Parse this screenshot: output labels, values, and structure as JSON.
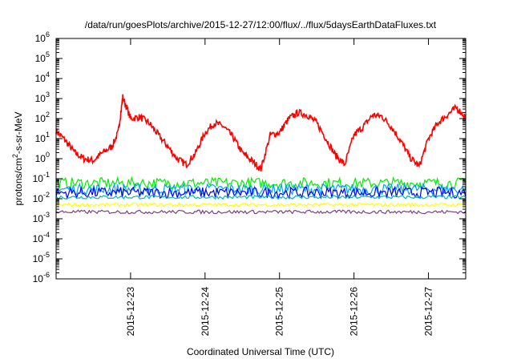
{
  "chart_data": {
    "type": "line",
    "title": "/data/run/goesPlots/archive/2015-12-27/12:00/flux/../flux/5daysEarthDataFluxes.txt",
    "xlabel": "Coordinated Universal Time (UTC)",
    "ylabel": {
      "pre": "protons/cm",
      "sup": "2",
      "post": "-s-sr-MeV"
    },
    "y_scale": "log",
    "ylim_exp": [
      -6,
      6
    ],
    "y_ticks": [
      {
        "base": "10",
        "exp": "-6"
      },
      {
        "base": "10",
        "exp": "-5"
      },
      {
        "base": "10",
        "exp": "-4"
      },
      {
        "base": "10",
        "exp": "-3"
      },
      {
        "base": "10",
        "exp": "-2"
      },
      {
        "base": "10",
        "exp": "-1"
      },
      {
        "base": "10",
        "exp": "0"
      },
      {
        "base": "10",
        "exp": "1"
      },
      {
        "base": "10",
        "exp": "2"
      },
      {
        "base": "10",
        "exp": "3"
      },
      {
        "base": "10",
        "exp": "4"
      },
      {
        "base": "10",
        "exp": "5"
      },
      {
        "base": "10",
        "exp": "6"
      }
    ],
    "xlim_days": [
      "2015-12-22 00:00",
      "2015-12-27 12:00"
    ],
    "x_ticks": [
      "2015-12-23",
      "2015-12-24",
      "2015-12-25",
      "2015-12-26",
      "2015-12-27"
    ],
    "grid": false,
    "legend": "none",
    "series": [
      {
        "color": "#ff0000",
        "x": [
          "2015-12-22 00:00",
          "2015-12-22 03:00",
          "2015-12-22 06:00",
          "2015-12-22 09:00",
          "2015-12-22 12:00",
          "2015-12-22 15:00",
          "2015-12-22 18:00",
          "2015-12-22 20:00",
          "2015-12-22 21:30",
          "2015-12-23 00:00",
          "2015-12-23 03:00",
          "2015-12-23 06:00",
          "2015-12-23 09:00",
          "2015-12-23 12:00",
          "2015-12-23 15:00",
          "2015-12-23 18:00",
          "2015-12-23 21:00",
          "2015-12-24 00:00",
          "2015-12-24 03:00",
          "2015-12-24 06:00",
          "2015-12-24 09:00",
          "2015-12-24 12:00",
          "2015-12-24 15:00",
          "2015-12-24 18:00",
          "2015-12-24 21:00",
          "2015-12-25 00:00",
          "2015-12-25 03:00",
          "2015-12-25 06:00",
          "2015-12-25 09:00",
          "2015-12-25 12:00",
          "2015-12-25 15:00",
          "2015-12-25 18:00",
          "2015-12-25 21:00",
          "2015-12-26 00:00",
          "2015-12-26 03:00",
          "2015-12-26 06:00",
          "2015-12-26 09:00",
          "2015-12-26 12:00",
          "2015-12-26 15:00",
          "2015-12-26 18:00",
          "2015-12-26 21:00",
          "2015-12-27 00:00",
          "2015-12-27 03:00",
          "2015-12-27 06:00",
          "2015-12-27 09:00",
          "2015-12-27 12:00"
        ],
        "y": [
          25,
          8,
          2,
          1,
          0.8,
          2,
          4,
          20,
          1200,
          100,
          120,
          60,
          15,
          4,
          1,
          0.5,
          2,
          20,
          60,
          40,
          12,
          2,
          0.8,
          0.3,
          15,
          20,
          100,
          200,
          150,
          60,
          10,
          1.5,
          0.5,
          15,
          40,
          150,
          130,
          40,
          8,
          1.2,
          0.4,
          10,
          60,
          150,
          350,
          120
        ]
      },
      {
        "color": "#00ee00",
        "level": 0.06
      },
      {
        "color": "#00a0ff",
        "level": 0.03
      },
      {
        "color": "#0000ff",
        "level": 0.02
      },
      {
        "color": "#00b8b0",
        "level": 0.012
      },
      {
        "color": "#ffff00",
        "level": 0.005
      },
      {
        "color": "#7f3f7f",
        "level": 0.0022
      }
    ]
  }
}
